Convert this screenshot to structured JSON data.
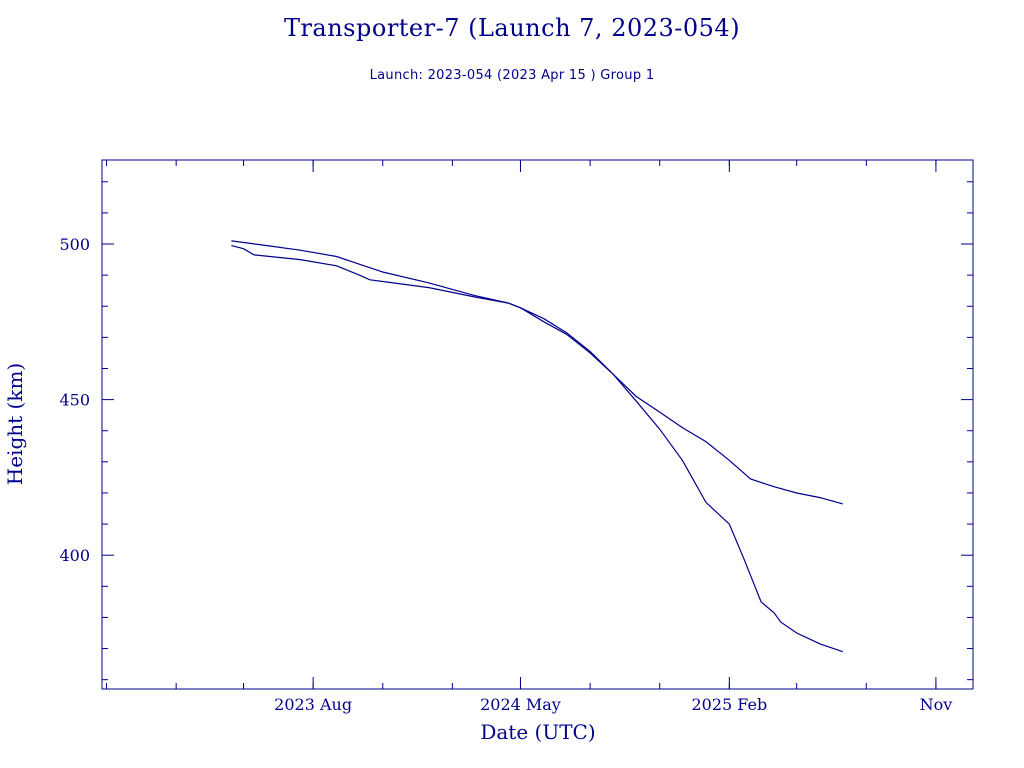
{
  "chart_data": {
    "type": "line",
    "title": "Transporter-7 (Launch 7, 2023-054)",
    "subtitle": "Launch: 2023-054  (2023 Apr 15 )  Group 1",
    "xlabel": "Date (UTC)",
    "ylabel": "Height (km)",
    "ylim": [
      357,
      527
    ],
    "xlim": [
      "2022-10-26",
      "2025-12-20"
    ],
    "x_ticks": [
      {
        "date": "2023-08-01",
        "label": "2023 Aug"
      },
      {
        "date": "2024-05-01",
        "label": "2024 May"
      },
      {
        "date": "2025-02-01",
        "label": "2025 Feb"
      },
      {
        "date": "2025-11-01",
        "label": "Nov"
      }
    ],
    "y_ticks": [
      400,
      450,
      500
    ],
    "grid": false,
    "line_color": "#00008b",
    "series": [
      {
        "x": [
          "2023-04-15",
          "2023-06-01",
          "2023-07-15",
          "2023-09-01",
          "2023-10-01",
          "2023-11-01",
          "2024-01-01",
          "2024-03-01",
          "2024-04-15",
          "2024-05-01",
          "2024-06-01",
          "2024-07-01",
          "2024-08-01",
          "2024-09-01",
          "2024-10-01",
          "2024-11-01",
          "2024-12-01",
          "2025-01-01",
          "2025-02-01",
          "2025-03-01",
          "2025-04-01",
          "2025-05-01",
          "2025-06-01",
          "2025-07-01"
        ],
        "values": [
          501,
          499.5,
          498,
          496,
          493.5,
          491,
          487.5,
          483.5,
          481,
          479.5,
          475,
          471,
          465,
          458,
          451,
          446,
          441,
          436.5,
          430.5,
          424.5,
          422,
          420,
          418.5,
          416.5
        ]
      },
      {
        "x": [
          "2023-04-15",
          "2023-05-01",
          "2023-05-15",
          "2023-07-15",
          "2023-09-01",
          "2023-10-01",
          "2023-10-15",
          "2024-01-01",
          "2024-03-01",
          "2024-04-15",
          "2024-05-01",
          "2024-06-01",
          "2024-07-01",
          "2024-08-01",
          "2024-09-01",
          "2024-10-01",
          "2024-11-01",
          "2024-12-01",
          "2025-01-01",
          "2025-02-01",
          "2025-02-20",
          "2025-03-15",
          "2025-04-01",
          "2025-04-10",
          "2025-05-01",
          "2025-06-01",
          "2025-07-01"
        ],
        "values": [
          499.5,
          498.5,
          496.5,
          495,
          493,
          490,
          488.5,
          486,
          483,
          481,
          479.5,
          476,
          471.5,
          465.5,
          458,
          449.5,
          440.5,
          430.5,
          417,
          410,
          399,
          385,
          381.5,
          378.5,
          375,
          371.5,
          369
        ]
      }
    ]
  }
}
